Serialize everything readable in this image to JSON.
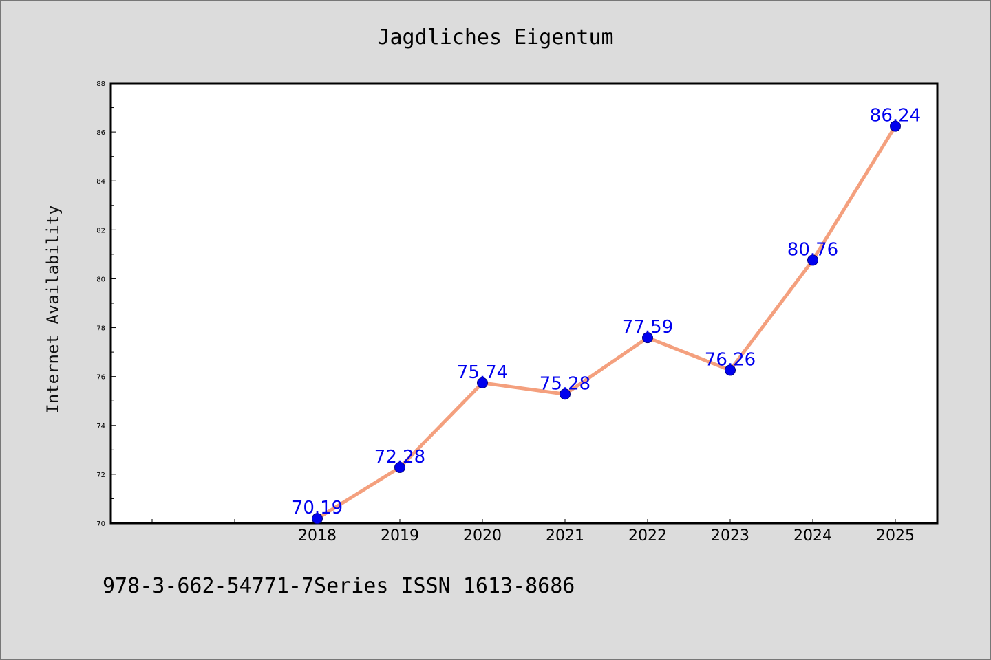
{
  "chart_data": {
    "type": "line",
    "title": "Jagdliches Eigentum",
    "xlabel": "",
    "ylabel": "Internet Availability",
    "x": [
      "2018",
      "2019",
      "2020",
      "2021",
      "2022",
      "2023",
      "2024",
      "2025"
    ],
    "series": [
      {
        "values": [
          70.19,
          72.28,
          75.74,
          75.28,
          77.59,
          76.26,
          80.76,
          86.24
        ],
        "labels": [
          "70.19",
          "72.28",
          "75.74",
          "75.28",
          "77.59",
          "76.26",
          "80.76",
          "86.24"
        ]
      }
    ],
    "ylim": [
      70,
      88
    ],
    "yticks": [
      "70",
      "72",
      "74",
      "76",
      "78",
      "80",
      "82",
      "84",
      "86",
      "88"
    ],
    "grid": false,
    "legend": "none",
    "colors": {
      "line": "#f4a07e",
      "marker": "#0000ee",
      "data_label": "#0000ee",
      "background": "#dcdcdc",
      "plot_background": "#ffffff"
    }
  },
  "footer": "978-3-662-54771-7Series ISSN 1613-8686"
}
